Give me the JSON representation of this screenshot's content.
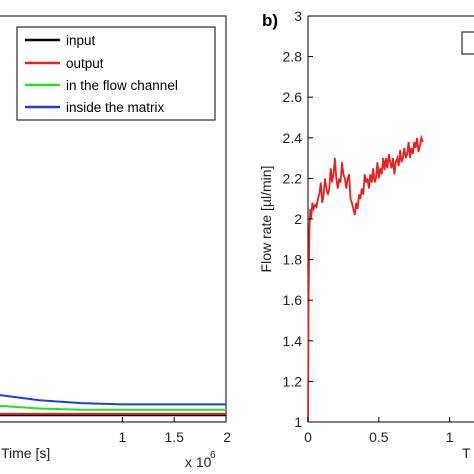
{
  "chart_data": [
    {
      "type": "line",
      "panel_label": "",
      "xlabel": "Time [s]",
      "ylabel": "",
      "xlim": [
        -0.2,
        2.0
      ],
      "x_exponent_label": "x 10",
      "x_exponent_power": "6",
      "x_ticks": [
        "1",
        "1.5",
        "2"
      ],
      "x_tick_values": [
        1,
        1.5,
        2
      ],
      "ylim": [
        0,
        3
      ],
      "y_ticks": [],
      "legend": {
        "position": "top",
        "entries": [
          {
            "label": "input",
            "color": "#000000"
          },
          {
            "label": "output",
            "color": "#e8211f"
          },
          {
            "label": "in the flow channel",
            "color": "#22e022"
          },
          {
            "label": "inside the matrix",
            "color": "#1f3fd6"
          }
        ]
      },
      "series": [
        {
          "name": "input",
          "color": "#000000",
          "x": [
            -0.2,
            2.0
          ],
          "y": [
            0.05,
            0.05
          ]
        },
        {
          "name": "output",
          "color": "#e8211f",
          "x": [
            -0.2,
            2.0
          ],
          "y": [
            0.06,
            0.06
          ]
        },
        {
          "name": "in the flow channel",
          "color": "#22e022",
          "x": [
            -0.2,
            0.2,
            0.6,
            1.0,
            1.4,
            2.0
          ],
          "y": [
            0.12,
            0.1,
            0.09,
            0.09,
            0.09,
            0.09
          ]
        },
        {
          "name": "inside the matrix",
          "color": "#1f3fd6",
          "x": [
            -0.2,
            0.2,
            0.6,
            1.0,
            1.4,
            2.0
          ],
          "y": [
            0.2,
            0.16,
            0.14,
            0.13,
            0.13,
            0.13
          ]
        }
      ]
    },
    {
      "type": "line",
      "panel_label": "b)",
      "xlabel": "T",
      "ylabel": "Flow rate [µl/min]",
      "xlim": [
        0,
        1.2
      ],
      "x_ticks": [
        "0",
        "0.5",
        "1"
      ],
      "x_tick_values": [
        0,
        0.5,
        1
      ],
      "ylim": [
        1,
        3
      ],
      "y_ticks": [
        "1",
        "1.2",
        "1.4",
        "1.6",
        "1.8",
        "2",
        "2.2",
        "2.4",
        "2.6",
        "2.8",
        "3"
      ],
      "y_tick_values": [
        1,
        1.2,
        1.4,
        1.6,
        1.8,
        2,
        2.2,
        2.4,
        2.6,
        2.8,
        3
      ],
      "series": [
        {
          "name": "",
          "color": "#e8211f",
          "x": [
            0,
            0.004,
            0.01,
            0.016,
            0.022,
            0.03,
            0.04,
            0.05,
            0.06,
            0.07,
            0.08,
            0.09,
            0.1,
            0.11,
            0.12,
            0.13,
            0.14,
            0.15,
            0.16,
            0.17,
            0.18,
            0.19,
            0.2,
            0.21,
            0.22,
            0.23,
            0.24,
            0.25,
            0.26,
            0.27,
            0.28,
            0.29,
            0.3,
            0.31,
            0.32,
            0.33,
            0.34,
            0.35,
            0.36,
            0.37,
            0.38,
            0.39,
            0.4,
            0.41,
            0.42,
            0.43,
            0.44,
            0.45,
            0.46,
            0.47,
            0.48,
            0.49,
            0.5,
            0.51,
            0.52,
            0.53,
            0.54,
            0.55,
            0.56,
            0.57,
            0.58,
            0.59,
            0.6,
            0.61,
            0.62,
            0.63,
            0.64,
            0.65,
            0.66,
            0.67,
            0.68,
            0.69,
            0.7,
            0.71,
            0.72,
            0.73,
            0.74,
            0.75,
            0.76,
            0.77,
            0.78,
            0.79,
            0.8,
            0.81
          ],
          "y": [
            1.0,
            1.6,
            1.95,
            2.05,
            2.0,
            2.08,
            2.05,
            2.07,
            2.06,
            2.1,
            2.12,
            2.18,
            2.08,
            2.12,
            2.2,
            2.15,
            2.12,
            2.15,
            2.25,
            2.18,
            2.22,
            2.3,
            2.2,
            2.15,
            2.2,
            2.18,
            2.28,
            2.22,
            2.2,
            2.15,
            2.2,
            2.22,
            2.1,
            2.08,
            2.05,
            2.02,
            2.08,
            2.05,
            2.12,
            2.1,
            2.15,
            2.12,
            2.22,
            2.18,
            2.2,
            2.15,
            2.22,
            2.18,
            2.25,
            2.18,
            2.2,
            2.28,
            2.2,
            2.25,
            2.22,
            2.3,
            2.24,
            2.3,
            2.25,
            2.32,
            2.28,
            2.25,
            2.3,
            2.22,
            2.28,
            2.3,
            2.26,
            2.34,
            2.28,
            2.3,
            2.35,
            2.3,
            2.32,
            2.38,
            2.3,
            2.35,
            2.32,
            2.38,
            2.35,
            2.4,
            2.33,
            2.36,
            2.4,
            2.38
          ]
        }
      ]
    }
  ]
}
